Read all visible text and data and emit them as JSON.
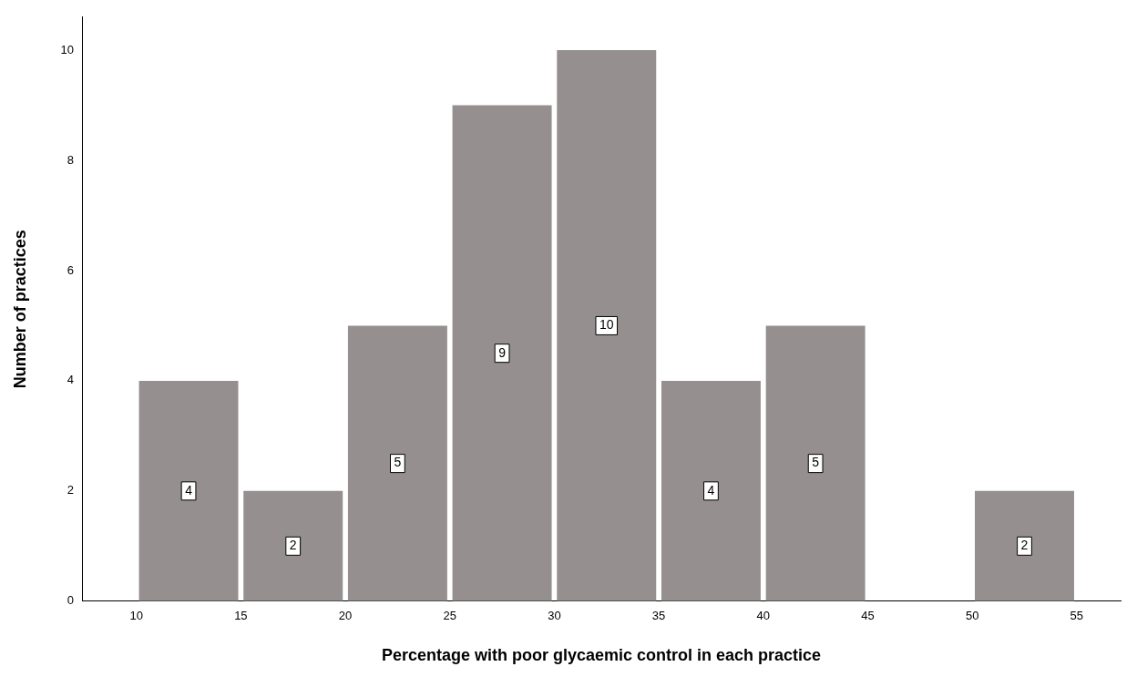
{
  "chart_data": {
    "type": "histogram",
    "xlabel": "Percentage with poor glycaemic control in each practice",
    "ylabel": "Number of practices",
    "bins": [
      10,
      15,
      20,
      25,
      30,
      35,
      40,
      45,
      50,
      55
    ],
    "values": [
      4,
      2,
      5,
      9,
      10,
      4,
      5,
      0,
      2
    ],
    "value_labels": [
      "4",
      "2",
      "5",
      "9",
      "10",
      "4",
      "5",
      null,
      "2"
    ],
    "color": "#958f8f",
    "xlim": [
      7.4,
      57.1
    ],
    "xticks": [
      10,
      15,
      20,
      25,
      30,
      35,
      40,
      45,
      50,
      55
    ],
    "ylim": [
      0,
      10.6
    ],
    "yticks": [
      0,
      2,
      4,
      6,
      8,
      10
    ],
    "grid": false,
    "legend": false
  }
}
